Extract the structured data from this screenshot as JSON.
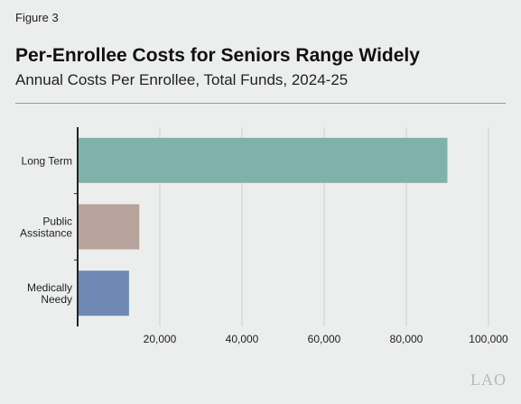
{
  "figure_label": "Figure 3",
  "title": "Per-Enrollee Costs for Seniors Range Widely",
  "subtitle": "Annual Costs Per Enrollee, Total Funds, 2024-25",
  "logo_text": "LAO",
  "chart_data": {
    "type": "bar",
    "orientation": "horizontal",
    "title": "Per-Enrollee Costs for Seniors Range Widely",
    "subtitle": "Annual Costs Per Enrollee, Total Funds, 2024-25",
    "categories": [
      {
        "lines": [
          "Long Term"
        ]
      },
      {
        "lines": [
          "Public",
          "Assistance"
        ]
      },
      {
        "lines": [
          "Medically",
          "Needy"
        ]
      }
    ],
    "values": [
      90000,
      15000,
      12500
    ],
    "colors": [
      "#7fb3aa",
      "#b5a39c",
      "#6e89b3"
    ],
    "xlim": [
      0,
      100000
    ],
    "xticks": [
      20000,
      40000,
      60000,
      80000,
      100000
    ],
    "xtick_labels": [
      "20,000",
      "40,000",
      "60,000",
      "80,000",
      "100,000"
    ],
    "grid": "vertical",
    "gridline_color": "#d0d0d0",
    "axis_color": "#222222"
  }
}
